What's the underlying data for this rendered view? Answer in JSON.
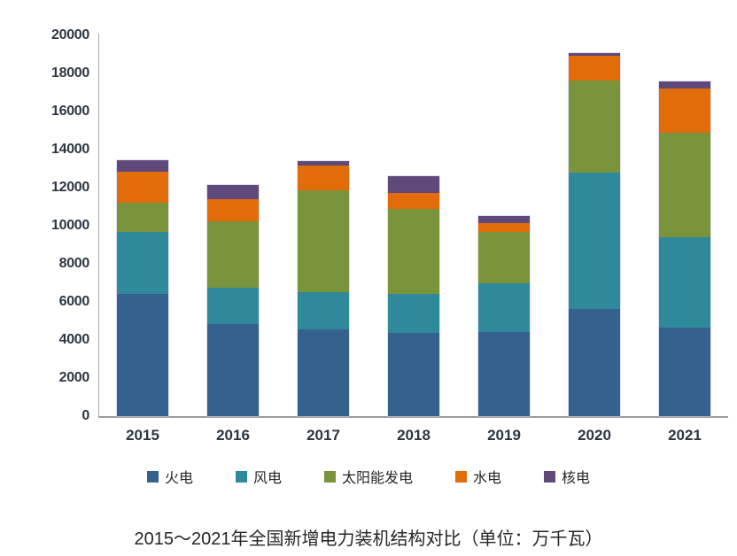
{
  "chart_data": {
    "type": "bar",
    "stacked": true,
    "title": "2015～2021年全国新增电力装机结构对比（单位：万千瓦）",
    "unit": "万千瓦",
    "categories": [
      "2015",
      "2016",
      "2017",
      "2018",
      "2019",
      "2020",
      "2021"
    ],
    "series": [
      {
        "name": "火电",
        "color": "#35618F",
        "values": [
          6400,
          4836,
          4578,
          4380,
          4423,
          5637,
          4628
        ]
      },
      {
        "name": "风电",
        "color": "#2E8A9B",
        "values": [
          3297,
          1930,
          1952,
          2059,
          2574,
          7167,
          4757
        ]
      },
      {
        "name": "太阳能发电",
        "color": "#79943B",
        "values": [
          1513,
          3459,
          5338,
          4426,
          2681,
          4820,
          5488
        ]
      },
      {
        "name": "水电",
        "color": "#E36C0A",
        "values": [
          1608,
          1174,
          1287,
          854,
          445,
          1323,
          2349
        ]
      },
      {
        "name": "核电",
        "color": "#5F497A",
        "values": [
          612,
          720,
          218,
          884,
          409,
          112,
          340
        ]
      }
    ],
    "ylim": [
      0,
      20000
    ],
    "ytick_step": 2000,
    "yticks": [
      "0",
      "2000",
      "4000",
      "6000",
      "8000",
      "10000",
      "12000",
      "14000",
      "16000",
      "18000",
      "20000"
    ],
    "grid": false,
    "legend_position": "bottom",
    "axis_color": "#a9a9a9",
    "tick_label_color": "#2e3640"
  },
  "layout_totals": {
    "2015": 13430,
    "2016": 12119,
    "2017": 13373,
    "2018": 12603,
    "2019": 10532,
    "2020": 19059,
    "2021": 17562
  }
}
